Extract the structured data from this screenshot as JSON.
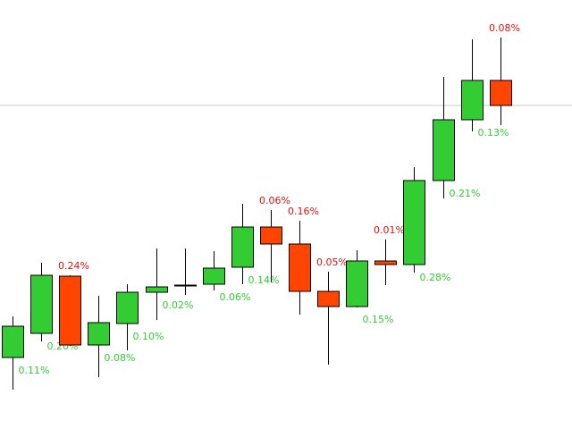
{
  "chart_data": {
    "type": "candlestick",
    "title": "",
    "xlabel": "",
    "ylabel": "",
    "ylim": [
      0,
      480
    ],
    "grid": false,
    "colors": {
      "up": "#33cc33",
      "down": "#ff4500",
      "wick": "#000000",
      "border": "#000000",
      "ref_line": "#c8c8c8",
      "label_up": "#33cc33",
      "label_down": "#dd1111"
    },
    "reference_line": 362,
    "candles": [
      {
        "open": 80,
        "close": 115,
        "high": 126,
        "low": 44,
        "label": "0.11%",
        "label_pos": "below"
      },
      {
        "open": 107,
        "close": 172,
        "high": 186,
        "low": 98,
        "label": "0.20%",
        "label_pos": "below"
      },
      {
        "open": 171,
        "close": 94,
        "high": 172,
        "low": 93,
        "label": "0.24%",
        "label_pos": "above"
      },
      {
        "open": 94,
        "close": 119,
        "high": 149,
        "low": 58,
        "label": "0.08%",
        "label_pos": "below"
      },
      {
        "open": 118,
        "close": 153,
        "high": 162,
        "low": 88,
        "label": "0.10%",
        "label_pos": "below"
      },
      {
        "open": 153,
        "close": 159,
        "high": 202,
        "low": 122,
        "label": "0.02%",
        "label_pos": "below"
      },
      {
        "open": 160,
        "close": 161,
        "high": 202,
        "low": 150,
        "label": "",
        "label_pos": "below"
      },
      {
        "open": 162,
        "close": 180,
        "high": 199,
        "low": 155,
        "label": "0.06%",
        "label_pos": "below"
      },
      {
        "open": 181,
        "close": 226,
        "high": 252,
        "low": 162,
        "label": "0.14%",
        "label_pos": "below"
      },
      {
        "open": 226,
        "close": 207,
        "high": 245,
        "low": 164,
        "label": "0.06%",
        "label_pos": "above"
      },
      {
        "open": 207,
        "close": 154,
        "high": 233,
        "low": 128,
        "label": "0.16%",
        "label_pos": "above"
      },
      {
        "open": 154,
        "close": 137,
        "high": 176,
        "low": 72,
        "label": "0.05%",
        "label_pos": "above"
      },
      {
        "open": 137,
        "close": 188,
        "high": 200,
        "low": 136,
        "label": "0.15%",
        "label_pos": "below"
      },
      {
        "open": 188,
        "close": 184,
        "high": 212,
        "low": 161,
        "label": "0.01%",
        "label_pos": "above"
      },
      {
        "open": 184,
        "close": 278,
        "high": 293,
        "low": 175,
        "label": "0.28%",
        "label_pos": "below"
      },
      {
        "open": 278,
        "close": 346,
        "high": 394,
        "low": 258,
        "label": "0.21%",
        "label_pos": "below"
      },
      {
        "open": 346,
        "close": 390,
        "high": 436,
        "low": 333,
        "label": "0.13%",
        "label_pos": "below"
      },
      {
        "open": 390,
        "close": 362,
        "high": 438,
        "low": 340,
        "label": "0.08%",
        "label_pos": "above"
      }
    ]
  }
}
